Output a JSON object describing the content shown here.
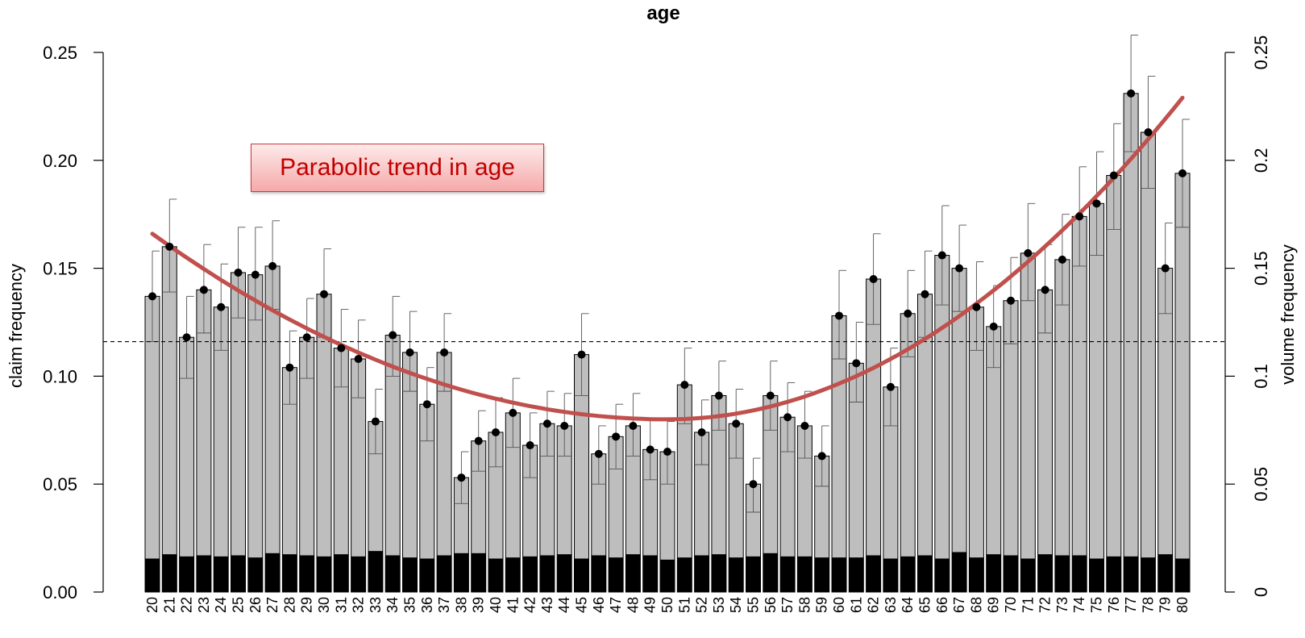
{
  "chart_data": {
    "type": "bar",
    "title": "age",
    "ylabel": "claim frequency",
    "y2label": "volume frequency",
    "ylim": [
      0,
      0.25
    ],
    "y2lim": [
      0,
      0.25
    ],
    "yticks": [
      "0.00",
      "0.05",
      "0.10",
      "0.15",
      "0.20",
      "0.25"
    ],
    "y2ticks": [
      "0",
      "0.05",
      "0.1",
      "0.15",
      "0.2",
      "0.25"
    ],
    "reference_line": 0.116,
    "annotation": "Parabolic trend in age",
    "categories": [
      "20",
      "21",
      "22",
      "23",
      "24",
      "25",
      "26",
      "27",
      "28",
      "29",
      "30",
      "31",
      "32",
      "33",
      "34",
      "35",
      "36",
      "37",
      "38",
      "39",
      "40",
      "41",
      "42",
      "43",
      "44",
      "45",
      "46",
      "47",
      "48",
      "49",
      "50",
      "51",
      "52",
      "53",
      "54",
      "55",
      "56",
      "57",
      "58",
      "59",
      "60",
      "61",
      "62",
      "63",
      "64",
      "65",
      "66",
      "67",
      "68",
      "69",
      "70",
      "71",
      "72",
      "73",
      "74",
      "75",
      "76",
      "77",
      "78",
      "79",
      "80"
    ],
    "series": [
      {
        "values": [
          0.137,
          0.16,
          0.118,
          0.14,
          0.132,
          0.148,
          0.147,
          0.151,
          0.104,
          0.118,
          0.138,
          0.113,
          0.108,
          0.079,
          0.119,
          0.111,
          0.087,
          0.111,
          0.053,
          0.07,
          0.074,
          0.083,
          0.068,
          0.078,
          0.077,
          0.11,
          0.064,
          0.072,
          0.077,
          0.066,
          0.065,
          0.096,
          0.074,
          0.091,
          0.078,
          0.05,
          0.091,
          0.081,
          0.077,
          0.063,
          0.128,
          0.106,
          0.145,
          0.095,
          0.129,
          0.138,
          0.156,
          0.15,
          0.132,
          0.123,
          0.135,
          0.157,
          0.14,
          0.154,
          0.174,
          0.18,
          0.193,
          0.231,
          0.213,
          0.15,
          0.194
        ],
        "ci_low": [
          0.116,
          0.139,
          0.099,
          0.12,
          0.112,
          0.127,
          0.126,
          0.131,
          0.087,
          0.099,
          0.118,
          0.095,
          0.09,
          0.064,
          0.1,
          0.093,
          0.07,
          0.093,
          0.041,
          0.056,
          0.058,
          0.067,
          0.053,
          0.063,
          0.063,
          0.091,
          0.05,
          0.057,
          0.063,
          0.052,
          0.05,
          0.078,
          0.059,
          0.075,
          0.062,
          0.037,
          0.075,
          0.065,
          0.062,
          0.049,
          0.108,
          0.088,
          0.124,
          0.077,
          0.109,
          0.118,
          0.133,
          0.13,
          0.112,
          0.104,
          0.115,
          0.135,
          0.12,
          0.133,
          0.151,
          0.156,
          0.168,
          0.204,
          0.187,
          0.129,
          0.169
        ],
        "ci_high": [
          0.158,
          0.182,
          0.137,
          0.161,
          0.152,
          0.169,
          0.169,
          0.172,
          0.121,
          0.136,
          0.159,
          0.131,
          0.126,
          0.094,
          0.137,
          0.13,
          0.104,
          0.129,
          0.065,
          0.084,
          0.09,
          0.099,
          0.083,
          0.093,
          0.092,
          0.129,
          0.077,
          0.087,
          0.092,
          0.08,
          0.079,
          0.113,
          0.089,
          0.107,
          0.094,
          0.062,
          0.107,
          0.097,
          0.093,
          0.077,
          0.149,
          0.125,
          0.166,
          0.113,
          0.149,
          0.158,
          0.179,
          0.17,
          0.153,
          0.142,
          0.155,
          0.18,
          0.161,
          0.175,
          0.197,
          0.204,
          0.217,
          0.258,
          0.239,
          0.171,
          0.219
        ]
      },
      {
        "values": [
          0.0155,
          0.0175,
          0.0165,
          0.017,
          0.0165,
          0.017,
          0.016,
          0.018,
          0.0175,
          0.017,
          0.0165,
          0.0175,
          0.0165,
          0.019,
          0.017,
          0.016,
          0.0155,
          0.017,
          0.018,
          0.018,
          0.0155,
          0.016,
          0.0165,
          0.017,
          0.0175,
          0.0155,
          0.017,
          0.016,
          0.0175,
          0.017,
          0.015,
          0.016,
          0.017,
          0.0175,
          0.016,
          0.0165,
          0.018,
          0.0165,
          0.0165,
          0.016,
          0.016,
          0.016,
          0.017,
          0.0155,
          0.0165,
          0.017,
          0.0155,
          0.0185,
          0.016,
          0.0175,
          0.017,
          0.0155,
          0.0175,
          0.017,
          0.017,
          0.0155,
          0.0165,
          0.0165,
          0.016,
          0.0175,
          0.0155
        ]
      }
    ],
    "trend": {
      "type": "parabola",
      "vertex_x": 50,
      "vertex_y": 0.08,
      "at_20": 0.166,
      "at_80": 0.229
    },
    "colors": {
      "bar_fill": "#bebebe",
      "volume_fill": "#000000",
      "trend": "#c0504d",
      "annotation_text": "#c00000"
    }
  }
}
